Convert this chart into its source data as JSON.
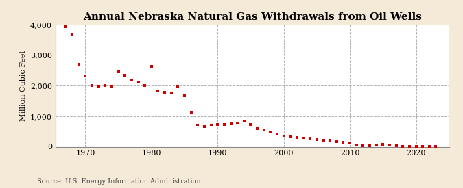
{
  "title": "Annual Nebraska Natural Gas Withdrawals from Oil Wells",
  "ylabel": "Million Cubic Feet",
  "source": "Source: U.S. Energy Information Administration",
  "background_color": "#f5ead8",
  "plot_background_color": "#ffffff",
  "marker_color": "#cc0000",
  "grid_color": "#aaaaaa",
  "years": [
    1967,
    1968,
    1969,
    1970,
    1971,
    1972,
    1973,
    1974,
    1975,
    1976,
    1977,
    1978,
    1979,
    1980,
    1981,
    1982,
    1983,
    1984,
    1985,
    1986,
    1987,
    1988,
    1989,
    1990,
    1991,
    1992,
    1993,
    1994,
    1995,
    1996,
    1997,
    1998,
    1999,
    2000,
    2001,
    2002,
    2003,
    2004,
    2005,
    2006,
    2007,
    2008,
    2009,
    2010,
    2011,
    2012,
    2013,
    2014,
    2015,
    2016,
    2017,
    2018,
    2019,
    2020,
    2021,
    2022,
    2023
  ],
  "values": [
    3920,
    3660,
    2700,
    2320,
    2010,
    1980,
    2010,
    1960,
    2440,
    2340,
    2190,
    2110,
    2000,
    2620,
    1820,
    1780,
    1760,
    1980,
    1660,
    1100,
    700,
    670,
    700,
    720,
    730,
    760,
    780,
    830,
    720,
    600,
    540,
    490,
    420,
    350,
    330,
    300,
    280,
    260,
    230,
    210,
    190,
    175,
    155,
    130,
    50,
    30,
    40,
    65,
    80,
    60,
    30,
    20,
    15,
    10,
    8,
    5,
    3
  ],
  "ylim": [
    0,
    4000
  ],
  "yticks": [
    0,
    1000,
    2000,
    3000,
    4000
  ],
  "xlim": [
    1965.5,
    2025
  ],
  "xticks": [
    1970,
    1980,
    1990,
    2000,
    2010,
    2020
  ],
  "title_fontsize": 11,
  "tick_fontsize": 8,
  "ylabel_fontsize": 8,
  "source_fontsize": 7
}
